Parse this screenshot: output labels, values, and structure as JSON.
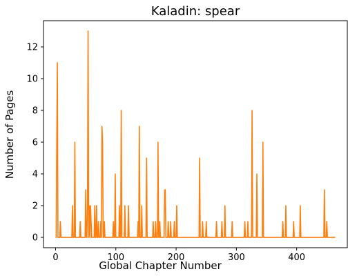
{
  "chart_data": {
    "type": "line",
    "title": "Kaladin: spear",
    "xlabel": "Global Chapter Number",
    "ylabel": "Number of Pages",
    "xlim": [
      -20,
      484
    ],
    "ylim": [
      -0.65,
      13.65
    ],
    "xticks": [
      0,
      100,
      200,
      300,
      400
    ],
    "yticks": [
      0,
      2,
      4,
      6,
      8,
      10,
      12
    ],
    "grid": false,
    "legend": "none",
    "series": [
      {
        "color": "#ff7f0e",
        "points": [
          [
            0,
            0
          ],
          [
            1,
            0
          ],
          [
            2,
            6
          ],
          [
            3,
            11
          ],
          [
            4,
            0
          ],
          [
            7,
            0
          ],
          [
            8,
            1
          ],
          [
            9,
            0
          ],
          [
            27,
            0
          ],
          [
            28,
            2
          ],
          [
            29,
            0
          ],
          [
            31,
            0
          ],
          [
            32,
            6
          ],
          [
            33,
            0
          ],
          [
            40,
            0
          ],
          [
            41,
            1
          ],
          [
            42,
            0
          ],
          [
            49,
            0
          ],
          [
            50,
            3
          ],
          [
            51,
            0
          ],
          [
            52,
            0
          ],
          [
            53,
            2
          ],
          [
            54,
            13
          ],
          [
            55,
            0
          ],
          [
            56,
            2
          ],
          [
            57,
            0
          ],
          [
            58,
            2
          ],
          [
            59,
            1
          ],
          [
            60,
            0
          ],
          [
            64,
            0
          ],
          [
            65,
            2
          ],
          [
            66,
            0
          ],
          [
            67,
            0
          ],
          [
            68,
            2
          ],
          [
            69,
            0
          ],
          [
            70,
            0
          ],
          [
            71,
            1
          ],
          [
            72,
            0
          ],
          [
            74,
            0
          ],
          [
            75,
            1
          ],
          [
            76,
            0
          ],
          [
            77,
            7
          ],
          [
            78,
            6
          ],
          [
            79,
            0
          ],
          [
            80,
            0
          ],
          [
            81,
            1
          ],
          [
            82,
            0
          ],
          [
            95,
            0
          ],
          [
            96,
            1
          ],
          [
            97,
            0
          ],
          [
            98,
            0
          ],
          [
            99,
            4
          ],
          [
            100,
            0
          ],
          [
            105,
            0
          ],
          [
            106,
            2
          ],
          [
            107,
            0
          ],
          [
            108,
            0
          ],
          [
            109,
            8
          ],
          [
            110,
            0
          ],
          [
            114,
            0
          ],
          [
            115,
            2
          ],
          [
            116,
            0
          ],
          [
            120,
            0
          ],
          [
            121,
            2
          ],
          [
            122,
            0
          ],
          [
            136,
            0
          ],
          [
            137,
            1
          ],
          [
            138,
            0
          ],
          [
            139,
            7
          ],
          [
            140,
            0
          ],
          [
            142,
            0
          ],
          [
            143,
            2
          ],
          [
            144,
            0
          ],
          [
            150,
            0
          ],
          [
            151,
            5
          ],
          [
            152,
            0
          ],
          [
            161,
            0
          ],
          [
            162,
            1
          ],
          [
            163,
            0
          ],
          [
            165,
            0
          ],
          [
            166,
            1
          ],
          [
            167,
            0
          ],
          [
            169,
            0
          ],
          [
            170,
            6
          ],
          [
            171,
            0
          ],
          [
            172,
            0
          ],
          [
            173,
            1
          ],
          [
            174,
            0
          ],
          [
            180,
            0
          ],
          [
            181,
            3
          ],
          [
            182,
            3
          ],
          [
            183,
            0
          ],
          [
            186,
            0
          ],
          [
            187,
            1
          ],
          [
            188,
            0
          ],
          [
            190,
            0
          ],
          [
            191,
            1
          ],
          [
            192,
            0
          ],
          [
            196,
            0
          ],
          [
            197,
            1
          ],
          [
            198,
            0
          ],
          [
            200,
            0
          ],
          [
            201,
            2
          ],
          [
            202,
            0
          ],
          [
            238,
            0
          ],
          [
            239,
            5
          ],
          [
            240,
            0
          ],
          [
            243,
            0
          ],
          [
            244,
            1
          ],
          [
            245,
            0
          ],
          [
            249,
            0
          ],
          [
            250,
            1
          ],
          [
            251,
            0
          ],
          [
            266,
            0
          ],
          [
            267,
            1
          ],
          [
            268,
            0
          ],
          [
            275,
            0
          ],
          [
            276,
            1
          ],
          [
            277,
            0
          ],
          [
            280,
            0
          ],
          [
            281,
            2
          ],
          [
            282,
            0
          ],
          [
            292,
            0
          ],
          [
            293,
            1
          ],
          [
            294,
            0
          ],
          [
            313,
            0
          ],
          [
            314,
            1
          ],
          [
            315,
            0
          ],
          [
            318,
            0
          ],
          [
            319,
            1
          ],
          [
            320,
            0
          ],
          [
            325,
            0
          ],
          [
            326,
            8
          ],
          [
            327,
            0
          ],
          [
            333,
            0
          ],
          [
            334,
            4
          ],
          [
            335,
            0
          ],
          [
            343,
            0
          ],
          [
            344,
            6
          ],
          [
            345,
            0
          ],
          [
            376,
            0
          ],
          [
            377,
            1
          ],
          [
            378,
            0
          ],
          [
            381,
            0
          ],
          [
            382,
            2
          ],
          [
            383,
            0
          ],
          [
            394,
            0
          ],
          [
            395,
            1
          ],
          [
            396,
            0
          ],
          [
            405,
            0
          ],
          [
            406,
            2
          ],
          [
            407,
            0
          ],
          [
            445,
            0
          ],
          [
            446,
            3
          ],
          [
            447,
            0
          ],
          [
            449,
            0
          ],
          [
            450,
            1
          ],
          [
            451,
            0
          ],
          [
            464,
            0
          ]
        ]
      }
    ]
  }
}
